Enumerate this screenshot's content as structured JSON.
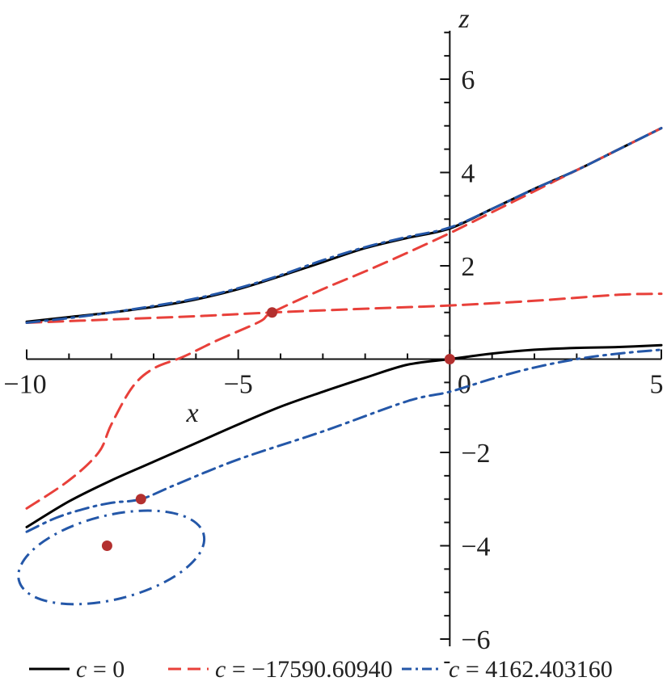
{
  "chart_data": {
    "type": "line",
    "xlabel": "x",
    "ylabel": "z",
    "xlim": [
      -10,
      5
    ],
    "ylim": [
      -6,
      7
    ],
    "x_ticks": [
      -10,
      -5,
      0,
      5
    ],
    "x_tick_labels": [
      "−10",
      "−5",
      "0",
      "5"
    ],
    "y_ticks": [
      -6,
      -4,
      -2,
      2,
      4,
      6
    ],
    "y_tick_labels": [
      "−6",
      "−4",
      "−2",
      "2",
      "4",
      "6"
    ],
    "grid": false,
    "legend_position": "bottom",
    "series": [
      {
        "name": "c = 0",
        "legend_var": "c",
        "legend_value": " = 0",
        "color": "#000000",
        "dash": "solid",
        "segments": [
          [
            [
              -10,
              0.8
            ],
            [
              -9,
              0.9
            ],
            [
              -8,
              1.0
            ],
            [
              -7,
              1.12
            ],
            [
              -6,
              1.28
            ],
            [
              -5,
              1.5
            ],
            [
              -4,
              1.78
            ],
            [
              -3,
              2.08
            ],
            [
              -2,
              2.38
            ],
            [
              -1,
              2.6
            ],
            [
              0,
              2.8
            ],
            [
              1,
              3.22
            ],
            [
              2,
              3.65
            ],
            [
              3,
              4.05
            ],
            [
              4,
              4.5
            ],
            [
              5,
              4.95
            ]
          ],
          [
            [
              -10,
              -3.6
            ],
            [
              -9,
              -3.05
            ],
            [
              -8,
              -2.6
            ],
            [
              -7,
              -2.2
            ],
            [
              -6,
              -1.8
            ],
            [
              -5,
              -1.4
            ],
            [
              -4,
              -1.02
            ],
            [
              -3,
              -0.7
            ],
            [
              -2,
              -0.4
            ],
            [
              -1,
              -0.12
            ],
            [
              0,
              0
            ],
            [
              1,
              0.12
            ],
            [
              2,
              0.2
            ],
            [
              3,
              0.24
            ],
            [
              4,
              0.26
            ],
            [
              5,
              0.3
            ]
          ]
        ]
      },
      {
        "name": "c = −17590.60940",
        "legend_var": "c",
        "legend_value": " = −17590.60940",
        "color": "#e8403a",
        "dash": "long-dash",
        "segments": [
          [
            [
              -10,
              0.78
            ],
            [
              -8,
              0.85
            ],
            [
              -6,
              0.92
            ],
            [
              -4.2,
              1.0
            ],
            [
              -2,
              1.08
            ],
            [
              0,
              1.15
            ],
            [
              2,
              1.25
            ],
            [
              4,
              1.38
            ],
            [
              5,
              1.4
            ]
          ],
          [
            [
              -10,
              -3.2
            ],
            [
              -9,
              -2.6
            ],
            [
              -8.3,
              -2.0
            ],
            [
              -8,
              -1.4
            ],
            [
              -7.5,
              -0.6
            ],
            [
              -7,
              -0.2
            ],
            [
              -6.3,
              0.05
            ],
            [
              -5.5,
              0.4
            ],
            [
              -4.5,
              0.8
            ],
            [
              -4.2,
              1.0
            ],
            [
              -3,
              1.5
            ],
            [
              -2,
              1.88
            ],
            [
              -1,
              2.28
            ],
            [
              0,
              2.7
            ],
            [
              1,
              3.15
            ],
            [
              2,
              3.6
            ],
            [
              3,
              4.05
            ],
            [
              4,
              4.5
            ],
            [
              5,
              4.95
            ]
          ]
        ]
      },
      {
        "name": "c = 4162.403160",
        "legend_var": "c",
        "legend_value": " = 4162.403160",
        "color": "#2457a8",
        "dash": "dash-dot",
        "segments": [
          [
            [
              -10,
              0.78
            ],
            [
              -9,
              0.88
            ],
            [
              -8,
              1.0
            ],
            [
              -7,
              1.14
            ],
            [
              -6,
              1.3
            ],
            [
              -5,
              1.52
            ],
            [
              -4,
              1.8
            ],
            [
              -3,
              2.12
            ],
            [
              -2,
              2.4
            ],
            [
              -1,
              2.62
            ],
            [
              0,
              2.82
            ],
            [
              1,
              3.22
            ],
            [
              2,
              3.65
            ],
            [
              3,
              4.05
            ],
            [
              4,
              4.5
            ],
            [
              5,
              4.95
            ]
          ],
          [
            [
              -10,
              -3.7
            ],
            [
              -9.3,
              -3.4
            ],
            [
              -8.6,
              -3.2
            ],
            [
              -8.0,
              -3.08
            ],
            [
              -7.3,
              -3.0
            ],
            [
              -6.5,
              -2.7
            ],
            [
              -5,
              -2.15
            ],
            [
              -3,
              -1.55
            ],
            [
              -1,
              -0.9
            ],
            [
              0,
              -0.7
            ],
            [
              1,
              -0.42
            ],
            [
              2,
              -0.18
            ],
            [
              3,
              0.0
            ],
            [
              4,
              0.12
            ],
            [
              5,
              0.2
            ]
          ]
        ]
      }
    ],
    "loop": {
      "series_index": 2,
      "center": [
        -8.0,
        -4.25
      ],
      "rx": 2.25,
      "ry": 0.9,
      "rotation_deg": -14
    },
    "points": [
      {
        "x": -4.2,
        "y": 1.0
      },
      {
        "x": 0.0,
        "y": 0.0
      },
      {
        "x": -7.3,
        "y": -3.0
      },
      {
        "x": -8.1,
        "y": -4.0
      }
    ],
    "point_color": "#b3302f"
  }
}
